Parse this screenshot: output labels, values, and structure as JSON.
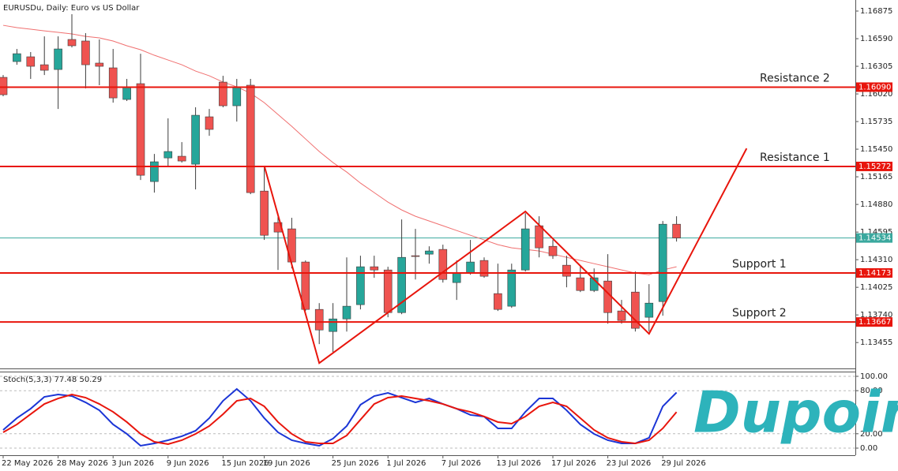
{
  "chart_data": [
    {
      "type": "candlestick",
      "title": "EURUSDu, Daily:  Euro vs US Dollar",
      "categories": [
        "22 May 2026",
        null,
        null,
        null,
        "28 May 2026",
        null,
        null,
        null,
        "3 Jun 2026",
        null,
        null,
        null,
        "9 Jun 2026",
        null,
        null,
        null,
        "15 Jun 2026",
        null,
        null,
        "19 Jun 2026",
        null,
        null,
        null,
        null,
        "25 Jun 2026",
        null,
        null,
        null,
        "1 Jul 2026",
        null,
        null,
        null,
        "7 Jul 2026",
        null,
        null,
        null,
        "13 Jul 2026",
        null,
        null,
        null,
        "17 Jul 2026",
        null,
        null,
        null,
        "23 Jul 2026",
        null,
        null,
        null,
        "29 Jul 2026",
        null
      ],
      "open": [
        1.16191,
        1.16354,
        1.16403,
        1.16321,
        1.16272,
        1.16582,
        1.16566,
        1.16338,
        1.16289,
        1.15963,
        1.16126,
        1.15116,
        1.1536,
        1.15377,
        1.15295,
        1.15784,
        1.16142,
        1.15898,
        1.1611,
        1.15018,
        1.14693,
        1.14628,
        1.14286,
        1.13797,
        1.13569,
        1.13699,
        1.13846,
        1.14237,
        1.14204,
        1.13764,
        1.14351,
        1.14367,
        1.14416,
        1.14074,
        1.14172,
        1.14302,
        1.1396,
        1.1383,
        1.14204,
        1.1466,
        1.14448,
        1.14253,
        1.14123,
        1.13992,
        1.1409,
        1.13781,
        1.13976,
        1.13716,
        1.13878,
        1.14676
      ],
      "high": [
        1.16215,
        1.16484,
        1.16452,
        1.16614,
        1.16614,
        1.16842,
        1.16647,
        1.16582,
        1.16484,
        1.16175,
        1.16435,
        1.15401,
        1.15768,
        1.15523,
        1.15882,
        1.15865,
        1.16207,
        1.16175,
        1.16175,
        1.15263,
        1.1479,
        1.14742,
        1.14302,
        1.13862,
        1.13862,
        1.14334,
        1.14351,
        1.14351,
        1.14237,
        1.14725,
        1.14628,
        1.14448,
        1.14465,
        1.14302,
        1.14514,
        1.14334,
        1.14269,
        1.14269,
        1.1479,
        1.14758,
        1.14514,
        1.14351,
        1.14253,
        1.1422,
        1.14367,
        1.13895,
        1.14188,
        1.14058,
        1.14709,
        1.14758
      ],
      "low": [
        1.15996,
        1.16321,
        1.16175,
        1.16215,
        1.15865,
        1.165,
        1.16077,
        1.1611,
        1.1593,
        1.15947,
        1.15132,
        1.15002,
        1.15279,
        1.15312,
        1.15035,
        1.15588,
        1.15882,
        1.15735,
        1.14986,
        1.14514,
        1.14204,
        1.1422,
        1.13781,
        1.13439,
        1.13357,
        1.13569,
        1.13797,
        1.14123,
        1.13716,
        1.13748,
        1.14106,
        1.14269,
        1.14074,
        1.13895,
        1.14155,
        1.14123,
        1.13781,
        1.13813,
        1.14188,
        1.14334,
        1.14318,
        1.14025,
        1.13976,
        1.13976,
        1.1365,
        1.1365,
        1.13569,
        1.13569,
        1.13732,
        1.14497
      ],
      "close": [
        1.16012,
        1.16435,
        1.16305,
        1.16264,
        1.16484,
        1.16517,
        1.16321,
        1.16305,
        1.15979,
        1.16093,
        1.15181,
        1.1532,
        1.15426,
        1.15328,
        1.158,
        1.15654,
        1.15898,
        1.16093,
        1.15002,
        1.14562,
        1.14595,
        1.14286,
        1.13797,
        1.13585,
        1.13699,
        1.1383,
        1.14237,
        1.14204,
        1.13764,
        1.14334,
        1.14343,
        1.144,
        1.14106,
        1.14172,
        1.14286,
        1.14139,
        1.13797,
        1.14204,
        1.14628,
        1.14432,
        1.14351,
        1.14139,
        1.13992,
        1.14123,
        1.13764,
        1.13683,
        1.13602,
        1.13862,
        1.14676,
        1.14534
      ],
      "up_color": "#26a69a",
      "down_color": "#ef5350",
      "wick_color": "#3c3c3c",
      "series": [
        {
          "type": "line",
          "color": "#f07070",
          "values": [
            1.16728,
            1.16704,
            1.16688,
            1.16671,
            1.16655,
            1.16639,
            1.16614,
            1.16598,
            1.16566,
            1.16517,
            1.16476,
            1.16419,
            1.1637,
            1.16321,
            1.16256,
            1.16207,
            1.16142,
            1.16093,
            1.16028,
            1.1593,
            1.15808,
            1.15686,
            1.15556,
            1.15426,
            1.15312,
            1.15214,
            1.151,
            1.15002,
            1.14904,
            1.14823,
            1.14758,
            1.14709,
            1.1466,
            1.14611,
            1.14562,
            1.14514,
            1.14465,
            1.14432,
            1.14416,
            1.144,
            1.14367,
            1.14334,
            1.14302,
            1.14269,
            1.14237,
            1.14204,
            1.14172,
            1.14155,
            1.14204,
            1.14237
          ]
        }
      ],
      "zigzag": {
        "color": "#e8150c",
        "x": [
          19,
          23,
          38,
          47,
          54.1
        ],
        "values": [
          1.15279,
          1.13243,
          1.14807,
          1.13545,
          1.15458
        ]
      },
      "levels": {
        "color": "#e8150c",
        "names": [
          "Resistance 2",
          "Resistance 1",
          "Support 1",
          "Support 2"
        ],
        "values": [
          1.1609,
          1.15272,
          1.14173,
          1.13667
        ],
        "value_labels": [
          "1.16090",
          "1.15272",
          "1.14173",
          "1.13667"
        ]
      },
      "last_price": {
        "value": 1.14534,
        "label": "1.14534",
        "color": "#3aa89e"
      },
      "ylim": [
        1.13188,
        1.16989
      ],
      "yticks": [
        {
          "value": 1.16875,
          "label": "1.16875"
        },
        {
          "value": 1.1659,
          "label": "1.16590"
        },
        {
          "value": 1.16305,
          "label": "1.16305"
        },
        {
          "value": 1.1602,
          "label": "1.16020"
        },
        {
          "value": 1.15735,
          "label": "1.15735"
        },
        {
          "value": 1.1545,
          "label": "1.15450"
        },
        {
          "value": 1.15165,
          "label": "1.15165"
        },
        {
          "value": 1.1488,
          "label": "1.14880"
        },
        {
          "value": 1.14595,
          "label": "1.14595"
        },
        {
          "value": 1.1431,
          "label": "1.14310"
        },
        {
          "value": 1.14025,
          "label": "1.14025"
        },
        {
          "value": 1.1374,
          "label": "1.13740"
        },
        {
          "value": 1.13455,
          "label": "1.13455"
        }
      ]
    },
    {
      "type": "line",
      "title": "Stoch(5,3,3) 77.48 50.29",
      "series": [
        {
          "color": "#1b35d6",
          "values": [
            25.3,
            41.8,
            54.9,
            71.4,
            74.7,
            72.5,
            63.7,
            52.7,
            33.0,
            19.8,
            3.3,
            6.6,
            11.0,
            16.5,
            24.2,
            41.8,
            65.9,
            82.4,
            65.9,
            41.8,
            22.0,
            11.0,
            6.6,
            3.3,
            13.2,
            30.8,
            60.4,
            72.5,
            76.9,
            70.3,
            63.7,
            69.2,
            61.5,
            54.9,
            46.2,
            44.0,
            27.5,
            27.5,
            50.5,
            69.2,
            69.2,
            52.7,
            33.0,
            19.8,
            11.0,
            6.6,
            6.6,
            14.3,
            58.2,
            77.48
          ]
        },
        {
          "color": "#e8150c",
          "values": [
            22.0,
            33.0,
            47.3,
            61.5,
            69.2,
            74.7,
            70.3,
            61.5,
            50.5,
            36.3,
            19.8,
            8.8,
            5.5,
            11.0,
            19.8,
            30.8,
            47.3,
            65.9,
            69.2,
            58.2,
            36.3,
            19.8,
            8.8,
            6.6,
            6.6,
            17.6,
            39.6,
            61.5,
            70.3,
            72.5,
            69.2,
            65.9,
            61.5,
            54.9,
            50.5,
            44.0,
            36.3,
            34.1,
            44.0,
            58.2,
            63.7,
            58.2,
            41.8,
            25.3,
            14.3,
            8.8,
            6.6,
            11.0,
            27.5,
            50.29
          ]
        }
      ],
      "ylim": [
        -9.9,
        105.5
      ],
      "yticks": [
        {
          "value": 100,
          "label": "100.00"
        },
        {
          "value": 80,
          "label": "80.00"
        },
        {
          "value": 20,
          "label": "20.00"
        },
        {
          "value": 0,
          "label": "0.00"
        }
      ]
    }
  ],
  "logo": "Dupoin"
}
